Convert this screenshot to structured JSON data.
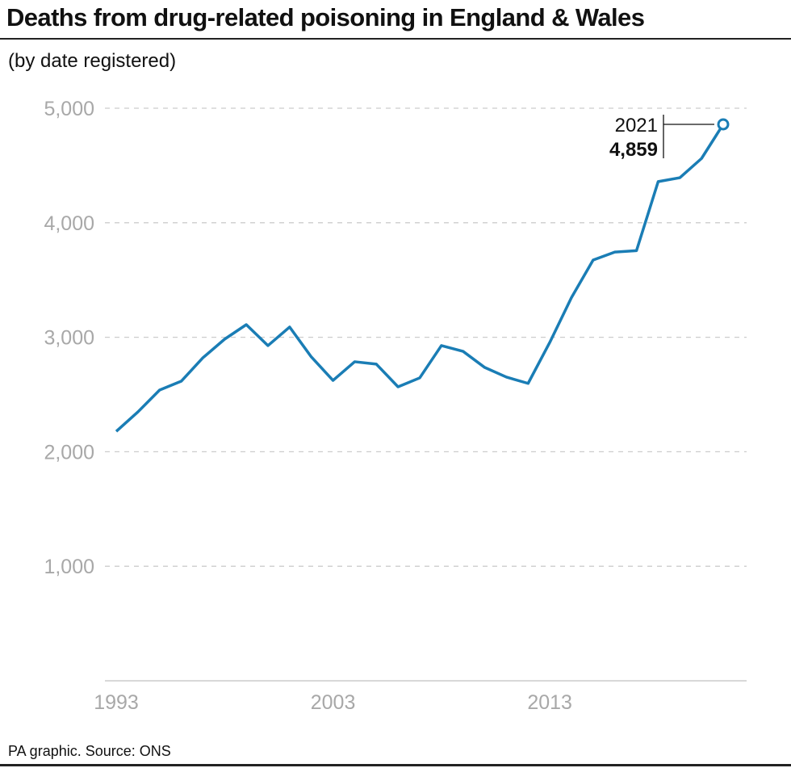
{
  "title": "Deaths from drug-related poisoning in England & Wales",
  "subtitle": "(by date registered)",
  "footer": "PA graphic. Source: ONS",
  "chart_data": {
    "type": "line",
    "title": "Deaths from drug-related poisoning in England & Wales",
    "subtitle": "(by date registered)",
    "xlabel": "",
    "ylabel": "",
    "ylim": [
      0,
      5000
    ],
    "xlim": [
      1993,
      2021
    ],
    "yticks": [
      1000,
      2000,
      3000,
      4000,
      5000
    ],
    "ytick_labels": [
      "1,000",
      "2,000",
      "3,000",
      "4,000",
      "5,000"
    ],
    "xticks": [
      1993,
      2003,
      2013
    ],
    "xtick_labels": [
      "1993",
      "2003",
      "2013"
    ],
    "grid": "horizontal dashed",
    "color": "#1a7db5",
    "x": [
      1993,
      1994,
      1995,
      1996,
      1997,
      1998,
      1999,
      2000,
      2001,
      2002,
      2003,
      2004,
      2005,
      2006,
      2007,
      2008,
      2009,
      2010,
      2011,
      2012,
      2013,
      2014,
      2015,
      2016,
      2017,
      2018,
      2019,
      2020,
      2021
    ],
    "values": [
      2178,
      2348,
      2539,
      2616,
      2821,
      2983,
      3110,
      2927,
      3089,
      2828,
      2623,
      2786,
      2765,
      2567,
      2645,
      2927,
      2877,
      2736,
      2652,
      2597,
      2955,
      3346,
      3674,
      3744,
      3756,
      4359,
      4393,
      4561,
      4859
    ],
    "annotation": {
      "year_label": "2021",
      "value_label": "4,859",
      "x": 2021,
      "y": 4859
    }
  }
}
